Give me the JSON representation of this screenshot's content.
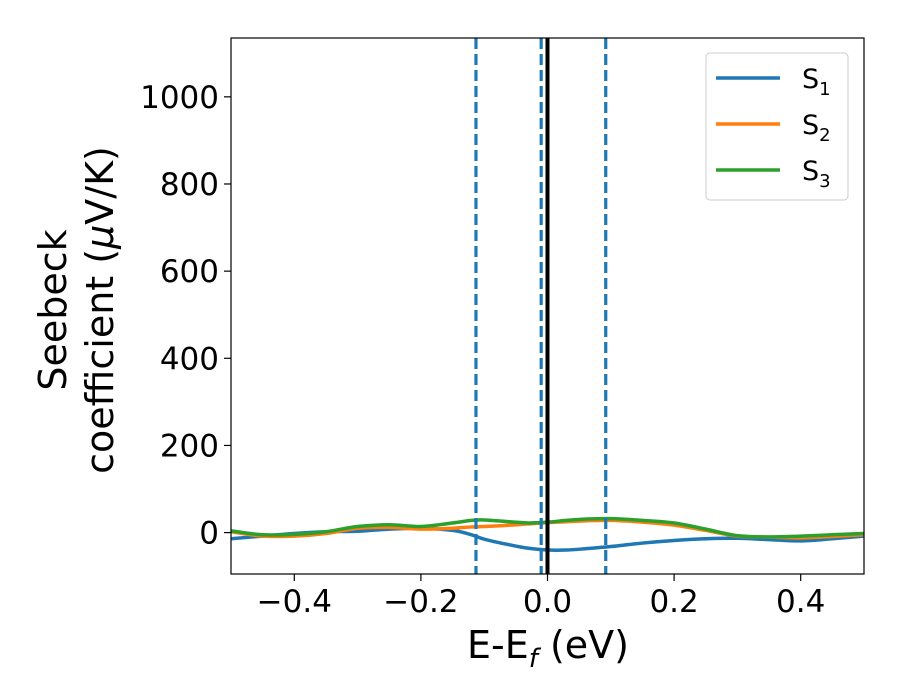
{
  "chart_data": {
    "type": "line",
    "title": "",
    "xlabel": "E-E",
    "xlabel_sub": "f",
    "xlabel_unit": " (eV)",
    "ylabel_line1": "Seebeck",
    "ylabel_line2": "coefficient  (",
    "ylabel_mu": "μ",
    "ylabel_line2_end": "V/K)",
    "xlim": [
      -0.5,
      0.5
    ],
    "ylim": [
      -95,
      1135
    ],
    "xticks": [
      {
        "value": -0.4,
        "label": "−0.4"
      },
      {
        "value": -0.2,
        "label": "−0.2"
      },
      {
        "value": 0.0,
        "label": "0.0"
      },
      {
        "value": 0.2,
        "label": "0.2"
      },
      {
        "value": 0.4,
        "label": "0.4"
      }
    ],
    "yticks": [
      {
        "value": 0,
        "label": "0"
      },
      {
        "value": 200,
        "label": "200"
      },
      {
        "value": 400,
        "label": "400"
      },
      {
        "value": 600,
        "label": "600"
      },
      {
        "value": 800,
        "label": "800"
      },
      {
        "value": 1000,
        "label": "1000"
      }
    ],
    "grid": false,
    "legend_position": "top-right",
    "series": [
      {
        "name": "S",
        "sub": "1",
        "color": "#1f77b4",
        "x": [
          -0.5,
          -0.45,
          -0.4,
          -0.35,
          -0.3,
          -0.25,
          -0.2,
          -0.15,
          -0.12,
          -0.1,
          -0.06,
          -0.03,
          0.0,
          0.03,
          0.06,
          0.1,
          0.15,
          0.2,
          0.25,
          0.3,
          0.35,
          0.4,
          0.45,
          0.5
        ],
        "y": [
          -14,
          -8,
          -2,
          2,
          3,
          8,
          10,
          5,
          -5,
          -15,
          -28,
          -36,
          -40,
          -40,
          -37,
          -32,
          -24,
          -18,
          -14,
          -13,
          -16,
          -19,
          -14,
          -8
        ]
      },
      {
        "name": "S",
        "sub": "2",
        "color": "#ff7f0e",
        "x": [
          -0.5,
          -0.45,
          -0.4,
          -0.35,
          -0.3,
          -0.25,
          -0.2,
          -0.15,
          -0.12,
          -0.1,
          -0.06,
          -0.03,
          0.0,
          0.03,
          0.06,
          0.1,
          0.15,
          0.2,
          0.25,
          0.3,
          0.35,
          0.4,
          0.45,
          0.5
        ],
        "y": [
          2,
          -8,
          -8,
          -2,
          10,
          12,
          8,
          10,
          13,
          14,
          17,
          20,
          23,
          25,
          27,
          28,
          24,
          17,
          5,
          -8,
          -10,
          -12,
          -9,
          -5
        ]
      },
      {
        "name": "S",
        "sub": "3",
        "color": "#2ca02c",
        "x": [
          -0.5,
          -0.45,
          -0.4,
          -0.35,
          -0.3,
          -0.25,
          -0.2,
          -0.15,
          -0.12,
          -0.1,
          -0.06,
          -0.03,
          0.0,
          0.03,
          0.06,
          0.1,
          0.15,
          0.2,
          0.25,
          0.3,
          0.35,
          0.4,
          0.45,
          0.5
        ],
        "y": [
          4,
          -5,
          -4,
          2,
          14,
          18,
          14,
          22,
          28,
          29,
          25,
          22,
          24,
          28,
          31,
          32,
          28,
          22,
          8,
          -7,
          -10,
          -8,
          -5,
          -2
        ]
      }
    ],
    "vlines": [
      {
        "x": -0.113,
        "style": "dashed",
        "color": "#1f77b4"
      },
      {
        "x": -0.01,
        "style": "dashed",
        "color": "#1f77b4"
      },
      {
        "x": 0.0,
        "style": "solid",
        "color": "#000000"
      },
      {
        "x": 0.092,
        "style": "dashed",
        "color": "#1f77b4"
      }
    ]
  }
}
